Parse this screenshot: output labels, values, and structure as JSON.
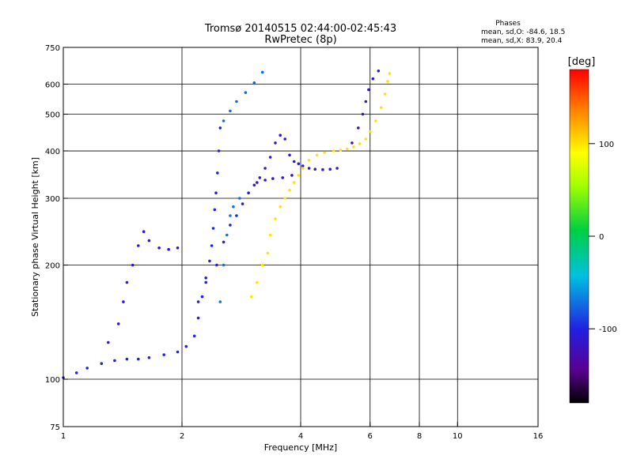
{
  "chart_data": {
    "type": "scatter",
    "title": "Tromsø 20140515 02:44:00-02:45:43",
    "subtitle": "RwPretec (8p)",
    "stats": {
      "heading": "Phases",
      "line_o": "mean, sd,O: -84.6, 18.5",
      "line_x": "mean, sd,X:  83.9, 20.4"
    },
    "xlabel": "Frequency [MHz]",
    "ylabel": "Stationary phase Virtual Height [km]",
    "x_scale": "log",
    "y_scale": "log",
    "xlim": [
      1,
      16
    ],
    "ylim": [
      75,
      750
    ],
    "x_ticks": [
      1,
      2,
      4,
      6,
      8,
      10,
      16
    ],
    "y_ticks": [
      75,
      100,
      200,
      300,
      400,
      500,
      600,
      750
    ],
    "x_grid": [
      2,
      4,
      6,
      8,
      10
    ],
    "y_grid": [
      100,
      200,
      300,
      400,
      500,
      600
    ],
    "grid": true,
    "colorbar": {
      "label": "[deg]",
      "range": [
        -180,
        180
      ],
      "ticks": [
        100,
        0,
        -100
      ],
      "colormap": "rainbow (black-purple-blue-cyan-green-yellow-orange-red)"
    },
    "series": [
      {
        "values": [
          [
            1.0,
            101
          ],
          [
            1.08,
            104
          ],
          [
            1.15,
            107
          ],
          [
            1.25,
            110
          ],
          [
            1.35,
            112
          ],
          [
            1.45,
            113
          ],
          [
            1.55,
            113
          ],
          [
            1.65,
            114
          ],
          [
            1.8,
            116
          ],
          [
            1.95,
            118
          ],
          [
            2.05,
            122
          ],
          [
            2.15,
            130
          ],
          [
            2.2,
            145
          ],
          [
            2.25,
            165
          ],
          [
            2.3,
            185
          ],
          [
            2.35,
            205
          ],
          [
            2.38,
            225
          ],
          [
            2.4,
            250
          ],
          [
            2.42,
            280
          ],
          [
            2.44,
            310
          ],
          [
            2.46,
            350
          ],
          [
            2.48,
            400
          ],
          [
            2.5,
            460
          ]
        ],
        "phase": -100
      },
      {
        "values": [
          [
            1.3,
            125
          ],
          [
            1.38,
            140
          ],
          [
            1.42,
            160
          ],
          [
            1.45,
            180
          ],
          [
            1.5,
            200
          ],
          [
            1.55,
            225
          ],
          [
            1.6,
            245
          ],
          [
            1.65,
            232
          ],
          [
            1.75,
            222
          ],
          [
            1.85,
            220
          ],
          [
            1.95,
            222
          ]
        ],
        "phase": -110
      },
      {
        "values": [
          [
            2.2,
            160
          ],
          [
            2.3,
            180
          ],
          [
            2.45,
            200
          ],
          [
            2.55,
            230
          ],
          [
            2.65,
            255
          ],
          [
            2.75,
            270
          ],
          [
            2.85,
            290
          ],
          [
            2.95,
            310
          ],
          [
            3.05,
            325
          ],
          [
            3.15,
            340
          ],
          [
            3.25,
            360
          ],
          [
            3.35,
            385
          ],
          [
            3.45,
            420
          ],
          [
            3.55,
            440
          ],
          [
            3.65,
            430
          ],
          [
            3.75,
            390
          ],
          [
            3.85,
            375
          ],
          [
            3.95,
            370
          ],
          [
            4.05,
            365
          ],
          [
            4.2,
            360
          ],
          [
            4.35,
            358
          ],
          [
            4.55,
            357
          ],
          [
            4.75,
            358
          ],
          [
            4.95,
            360
          ]
        ],
        "phase": -108
      },
      {
        "values": [
          [
            3.1,
            330
          ],
          [
            3.25,
            335
          ],
          [
            3.4,
            338
          ],
          [
            3.6,
            340
          ],
          [
            3.8,
            345
          ]
        ],
        "phase": -112
      },
      {
        "values": [
          [
            2.55,
            480
          ],
          [
            2.65,
            510
          ],
          [
            2.75,
            540
          ],
          [
            2.9,
            570
          ],
          [
            3.05,
            605
          ],
          [
            3.2,
            645
          ]
        ],
        "phase": -75
      },
      {
        "values": [
          [
            2.5,
            160
          ],
          [
            2.55,
            200
          ],
          [
            2.6,
            240
          ],
          [
            2.65,
            270
          ],
          [
            2.7,
            285
          ],
          [
            2.8,
            300
          ]
        ],
        "phase": -70
      },
      {
        "values": [
          [
            3.0,
            165
          ],
          [
            3.1,
            180
          ],
          [
            3.2,
            200
          ],
          [
            3.3,
            215
          ],
          [
            3.35,
            240
          ],
          [
            3.45,
            265
          ],
          [
            3.55,
            285
          ],
          [
            3.65,
            300
          ],
          [
            3.75,
            315
          ],
          [
            3.85,
            330
          ],
          [
            3.95,
            345
          ],
          [
            4.05,
            360
          ],
          [
            4.2,
            378
          ],
          [
            4.4,
            390
          ],
          [
            4.6,
            396
          ],
          [
            4.85,
            400
          ],
          [
            5.05,
            402
          ],
          [
            5.25,
            405
          ],
          [
            5.45,
            410
          ],
          [
            5.65,
            418
          ],
          [
            5.85,
            430
          ],
          [
            6.0,
            450
          ],
          [
            6.2,
            480
          ],
          [
            6.4,
            520
          ],
          [
            6.55,
            565
          ],
          [
            6.65,
            610
          ],
          [
            6.72,
            640
          ]
        ],
        "phase": 100
      },
      {
        "values": [
          [
            5.4,
            420
          ],
          [
            5.6,
            460
          ],
          [
            5.75,
            500
          ],
          [
            5.85,
            540
          ],
          [
            5.95,
            580
          ],
          [
            6.1,
            620
          ],
          [
            6.3,
            650
          ]
        ],
        "phase": -115
      }
    ]
  }
}
